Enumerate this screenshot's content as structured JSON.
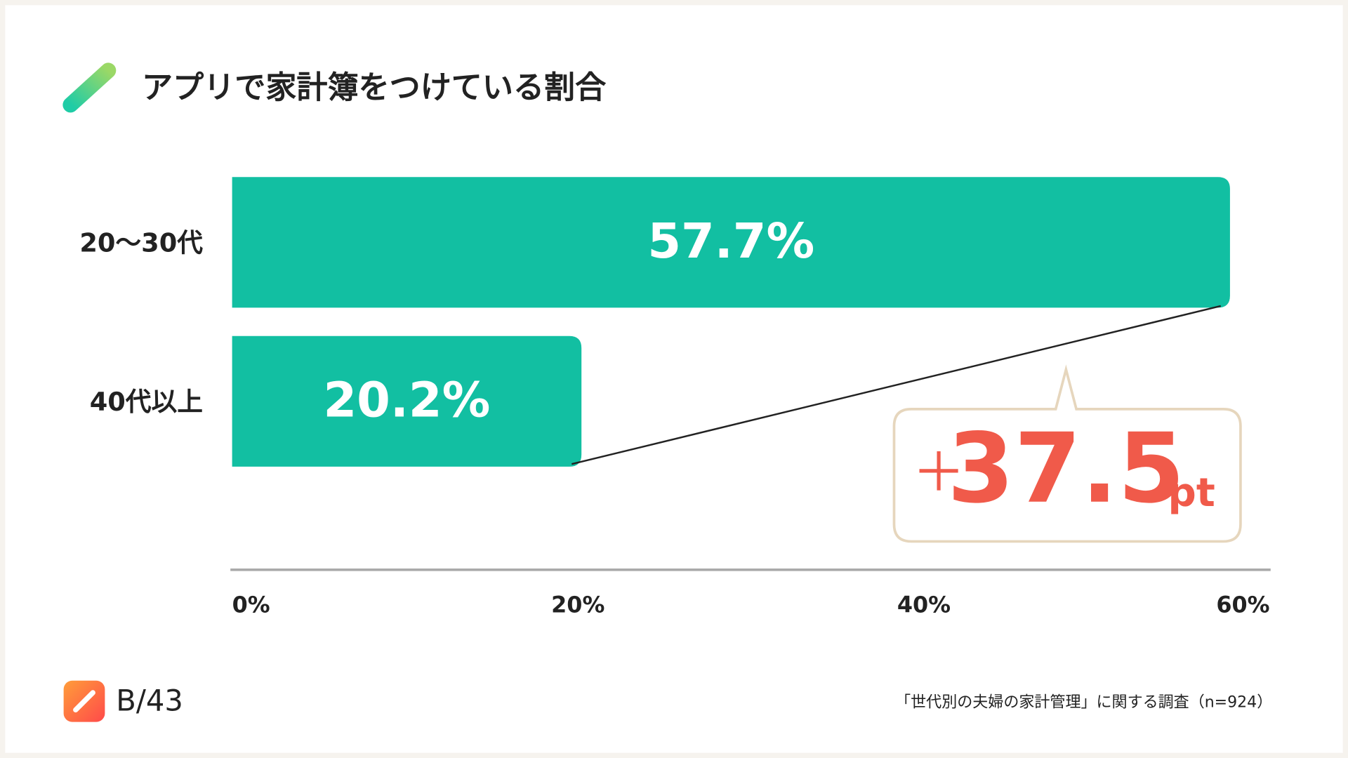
{
  "chart_data": {
    "type": "bar",
    "title": "アプリで家計簿をつけている割合",
    "categories": [
      "20〜30代",
      "40代以上"
    ],
    "values": [
      57.7,
      20.2
    ],
    "value_labels": [
      "57.7%",
      "20.2%"
    ],
    "color": "#12bfa2",
    "xlim": [
      0,
      60
    ],
    "xticks": [
      {
        "value": 0,
        "label": "0%"
      },
      {
        "value": 20,
        "label": "20%"
      },
      {
        "value": 40,
        "label": "40%"
      },
      {
        "value": 60,
        "label": "60%"
      }
    ],
    "annotation": [
      "＋",
      "37.5",
      "pt"
    ],
    "source": "「世代別の夫婦の家計管理」に関する調査（n=924）",
    "logo": "B/43"
  }
}
